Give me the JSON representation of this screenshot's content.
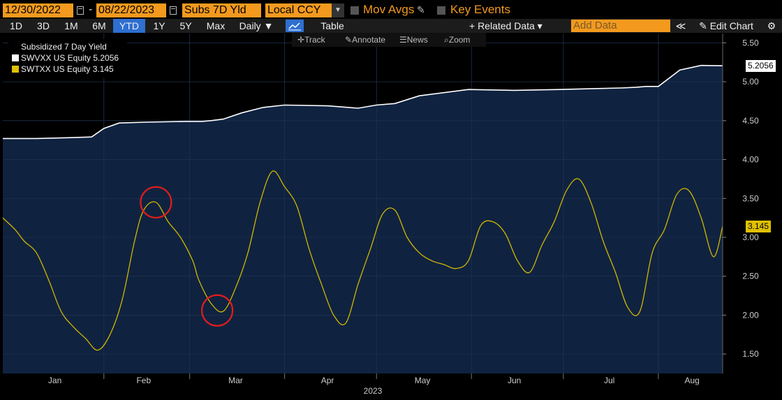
{
  "header": {
    "start_date": "12/30/2022",
    "end_date": "08/22/2023",
    "date_sep": "-",
    "field": "Subs 7D Yld",
    "currency": "Local CCY",
    "mov_avgs": "Mov Avgs",
    "key_events": "Key Events"
  },
  "toolbar": {
    "periods": [
      "1D",
      "3D",
      "1M",
      "6M",
      "YTD",
      "1Y",
      "5Y",
      "Max"
    ],
    "selected_period": "YTD",
    "frequency": "Daily ▼",
    "table": "Table",
    "related_data": "+ Related Data ▾",
    "add_data_placeholder": "Add Data",
    "collapse": "≪",
    "edit_chart": "Edit Chart",
    "settings": "⚙"
  },
  "subtools": {
    "track": "Track",
    "annotate": "Annotate",
    "news": "News",
    "zoom": "Zoom"
  },
  "legend": {
    "title": "Subsidized 7 Day Yield",
    "items": [
      {
        "label": "SWVXX US Equity 5.2056",
        "color": "#ffffff"
      },
      {
        "label": "SWTXX US Equity 3.145",
        "color": "#e0c000"
      }
    ]
  },
  "colors": {
    "accent": "#f39a1e",
    "plot_bg": "#0f2340",
    "swvxx": "#ffffff",
    "swtxx": "#d4b500",
    "annotation": "#e41c1c"
  },
  "chart_data": {
    "type": "area",
    "ylim": [
      1.25,
      5.62
    ],
    "y_ticks": [
      "5.50",
      "5.00",
      "4.50",
      "4.00",
      "3.50",
      "3.00",
      "2.50",
      "2.00",
      "1.50"
    ],
    "x_ticks": [
      "Jan",
      "Feb",
      "Mar",
      "Apr",
      "May",
      "Jun",
      "Jul",
      "Aug"
    ],
    "xlabel": "2023",
    "last_value_tags": [
      "5.2056",
      "3.145"
    ],
    "series": [
      {
        "name": "SWVXX US Equity",
        "last": "5.2056",
        "x": [
          "2022-12-30",
          "2023-01-10",
          "2023-01-20",
          "2023-01-28",
          "2023-02-01",
          "2023-02-06",
          "2023-02-15",
          "2023-02-28",
          "2023-03-05",
          "2023-03-08",
          "2023-03-12",
          "2023-03-18",
          "2023-03-25",
          "2023-04-01",
          "2023-04-15",
          "2023-04-25",
          "2023-05-01",
          "2023-05-07",
          "2023-05-15",
          "2023-05-31",
          "2023-06-15",
          "2023-06-30",
          "2023-07-10",
          "2023-07-20",
          "2023-07-25",
          "2023-07-28",
          "2023-08-01",
          "2023-08-08",
          "2023-08-15",
          "2023-08-22"
        ],
        "values": [
          4.27,
          4.27,
          4.28,
          4.29,
          4.4,
          4.47,
          4.48,
          4.49,
          4.49,
          4.5,
          4.52,
          4.6,
          4.67,
          4.7,
          4.69,
          4.66,
          4.7,
          4.72,
          4.82,
          4.9,
          4.89,
          4.9,
          4.91,
          4.92,
          4.93,
          4.94,
          4.94,
          5.15,
          5.21,
          5.2056
        ]
      },
      {
        "name": "SWTXX US Equity",
        "last": "3.145",
        "x": [
          "2022-12-30",
          "2023-01-03",
          "2023-01-06",
          "2023-01-10",
          "2023-01-14",
          "2023-01-18",
          "2023-01-22",
          "2023-01-26",
          "2023-01-30",
          "2023-02-03",
          "2023-02-07",
          "2023-02-11",
          "2023-02-14",
          "2023-02-18",
          "2023-02-22",
          "2023-02-26",
          "2023-03-02",
          "2023-03-04",
          "2023-03-08",
          "2023-03-12",
          "2023-03-16",
          "2023-03-20",
          "2023-03-24",
          "2023-03-28",
          "2023-04-01",
          "2023-04-05",
          "2023-04-09",
          "2023-04-13",
          "2023-04-17",
          "2023-04-21",
          "2023-04-25",
          "2023-04-29",
          "2023-05-03",
          "2023-05-07",
          "2023-05-11",
          "2023-05-15",
          "2023-05-19",
          "2023-05-23",
          "2023-05-27",
          "2023-05-31",
          "2023-06-04",
          "2023-06-08",
          "2023-06-12",
          "2023-06-16",
          "2023-06-20",
          "2023-06-24",
          "2023-06-28",
          "2023-07-02",
          "2023-07-06",
          "2023-07-10",
          "2023-07-14",
          "2023-07-18",
          "2023-07-22",
          "2023-07-26",
          "2023-07-30",
          "2023-08-03",
          "2023-08-07",
          "2023-08-11",
          "2023-08-15",
          "2023-08-19",
          "2023-08-22"
        ],
        "values": [
          3.25,
          3.1,
          2.95,
          2.8,
          2.45,
          2.05,
          1.85,
          1.7,
          1.55,
          1.75,
          2.2,
          2.95,
          3.35,
          3.45,
          3.2,
          3.0,
          2.7,
          2.45,
          2.15,
          2.05,
          2.35,
          2.8,
          3.45,
          3.85,
          3.65,
          3.4,
          2.85,
          2.4,
          2.0,
          1.9,
          2.4,
          2.85,
          3.3,
          3.35,
          3.0,
          2.8,
          2.7,
          2.65,
          2.6,
          2.7,
          3.15,
          3.2,
          3.05,
          2.7,
          2.55,
          2.9,
          3.2,
          3.6,
          3.75,
          3.45,
          2.95,
          2.55,
          2.1,
          2.05,
          2.8,
          3.1,
          3.55,
          3.6,
          3.25,
          2.75,
          3.145
        ]
      }
    ],
    "annotations": [
      {
        "type": "circle",
        "x": "2023-02-18",
        "y": 3.45
      },
      {
        "type": "circle",
        "x": "2023-03-10",
        "y": 2.06
      }
    ]
  }
}
